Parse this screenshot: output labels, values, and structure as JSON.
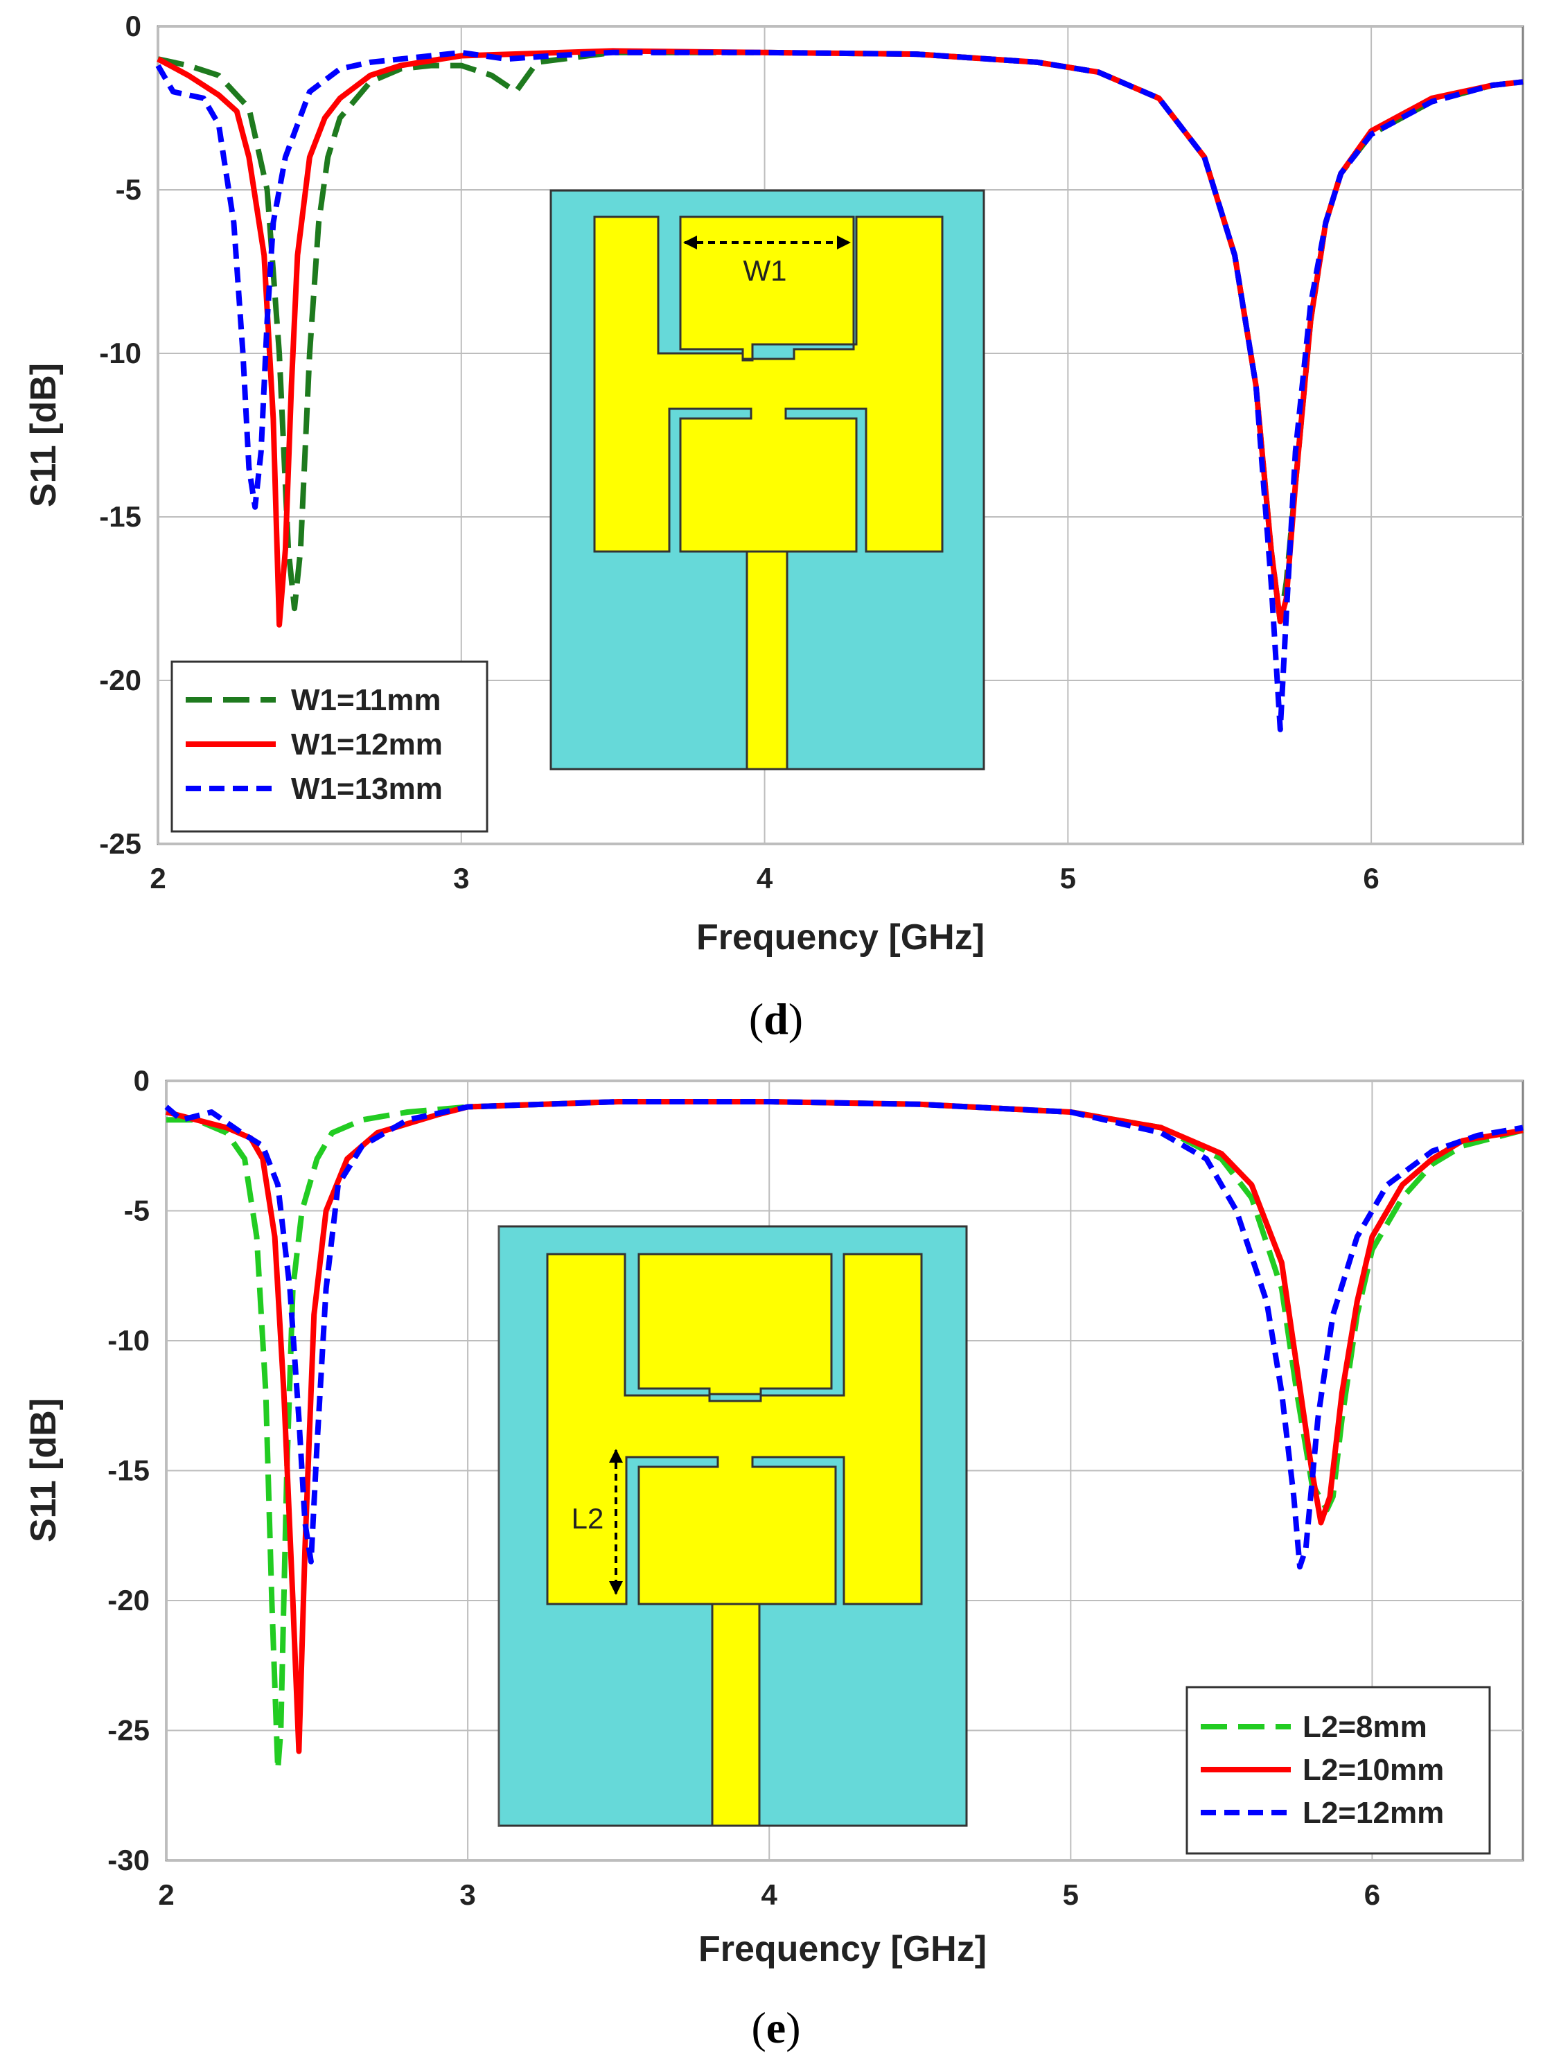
{
  "chart_data": [
    {
      "type": "line",
      "caption_letter": "d",
      "xlabel": "Frequency [GHz]",
      "ylabel": "S11 [dB]",
      "xlim": [
        2,
        6.5
      ],
      "ylim": [
        -25,
        0
      ],
      "xticks": [
        2,
        3,
        4,
        5,
        6
      ],
      "yticks": [
        0,
        -5,
        -10,
        -15,
        -20,
        -25
      ],
      "grid": true,
      "legend_position": "bottom-left",
      "inset_label": "W1",
      "inset_dimension": "width",
      "series": [
        {
          "name": "W1=11mm",
          "color": "#1e7a1e",
          "dash": "long-dash",
          "x": [
            2.0,
            2.1,
            2.2,
            2.3,
            2.36,
            2.4,
            2.43,
            2.45,
            2.47,
            2.5,
            2.53,
            2.56,
            2.6,
            2.7,
            2.8,
            2.9,
            3.0,
            3.1,
            3.18,
            3.25,
            3.5,
            4.0,
            4.5,
            4.9,
            5.1,
            5.3,
            5.45,
            5.55,
            5.62,
            5.67,
            5.7,
            5.72,
            5.75,
            5.8,
            5.85,
            5.9,
            6.0,
            6.2,
            6.4,
            6.5
          ],
          "y": [
            -1.0,
            -1.2,
            -1.5,
            -2.5,
            -5.0,
            -10.0,
            -16.0,
            -17.8,
            -16.0,
            -10.0,
            -6.0,
            -4.0,
            -2.8,
            -1.7,
            -1.3,
            -1.2,
            -1.2,
            -1.5,
            -2.0,
            -1.1,
            -0.8,
            -0.8,
            -0.85,
            -1.1,
            -1.4,
            -2.2,
            -4.0,
            -7.0,
            -11.0,
            -16.0,
            -18.2,
            -17.0,
            -14.0,
            -9.0,
            -6.0,
            -4.5,
            -3.3,
            -2.3,
            -1.8,
            -1.7
          ]
        },
        {
          "name": "W1=12mm",
          "color": "#ff0000",
          "dash": "solid",
          "x": [
            2.0,
            2.1,
            2.2,
            2.26,
            2.3,
            2.35,
            2.38,
            2.4,
            2.42,
            2.44,
            2.46,
            2.5,
            2.55,
            2.6,
            2.7,
            2.8,
            3.0,
            3.5,
            4.0,
            4.5,
            4.9,
            5.1,
            5.3,
            5.45,
            5.55,
            5.62,
            5.67,
            5.7,
            5.72,
            5.75,
            5.8,
            5.85,
            5.9,
            6.0,
            6.2,
            6.4,
            6.5
          ],
          "y": [
            -1.0,
            -1.5,
            -2.1,
            -2.6,
            -4.0,
            -7.0,
            -12.0,
            -18.3,
            -16.0,
            -11.0,
            -7.0,
            -4.0,
            -2.8,
            -2.2,
            -1.5,
            -1.2,
            -0.9,
            -0.75,
            -0.8,
            -0.85,
            -1.1,
            -1.4,
            -2.2,
            -4.0,
            -7.0,
            -11.0,
            -16.0,
            -18.2,
            -17.5,
            -14.0,
            -9.0,
            -6.0,
            -4.5,
            -3.2,
            -2.2,
            -1.8,
            -1.7
          ]
        },
        {
          "name": "W1=13mm",
          "color": "#0000ff",
          "dash": "short-dash",
          "x": [
            2.0,
            2.05,
            2.15,
            2.2,
            2.25,
            2.28,
            2.3,
            2.32,
            2.34,
            2.36,
            2.38,
            2.42,
            2.46,
            2.5,
            2.6,
            2.7,
            2.9,
            3.0,
            3.15,
            3.3,
            3.5,
            4.0,
            4.5,
            4.9,
            5.1,
            5.3,
            5.45,
            5.55,
            5.62,
            5.67,
            5.7,
            5.72,
            5.75,
            5.8,
            5.85,
            5.9,
            6.0,
            6.2,
            6.4,
            6.5
          ],
          "y": [
            -1.2,
            -2.0,
            -2.2,
            -3.0,
            -6.0,
            -10.0,
            -13.5,
            -14.7,
            -13.0,
            -9.0,
            -6.0,
            -4.0,
            -3.0,
            -2.0,
            -1.3,
            -1.1,
            -0.9,
            -0.8,
            -1.0,
            -0.9,
            -0.8,
            -0.8,
            -0.85,
            -1.1,
            -1.4,
            -2.2,
            -4.0,
            -7.0,
            -11.0,
            -17.0,
            -21.5,
            -18.0,
            -13.0,
            -8.5,
            -6.0,
            -4.5,
            -3.3,
            -2.3,
            -1.8,
            -1.7
          ]
        }
      ]
    },
    {
      "type": "line",
      "caption_letter": "e",
      "xlabel": "Frequency [GHz]",
      "ylabel": "S11 [dB]",
      "xlim": [
        2,
        6.5
      ],
      "ylim": [
        -30,
        0
      ],
      "xticks": [
        2,
        3,
        4,
        5,
        6
      ],
      "yticks": [
        0,
        -5,
        -10,
        -15,
        -20,
        -25,
        -30
      ],
      "grid": true,
      "legend_position": "bottom-right",
      "inset_label": "L2",
      "inset_dimension": "length",
      "series": [
        {
          "name": "L2=8mm",
          "color": "#22cc22",
          "dash": "long-dash",
          "x": [
            2.0,
            2.1,
            2.2,
            2.26,
            2.3,
            2.33,
            2.35,
            2.37,
            2.38,
            2.4,
            2.42,
            2.45,
            2.5,
            2.55,
            2.65,
            2.8,
            3.0,
            3.5,
            4.0,
            4.5,
            5.0,
            5.3,
            5.5,
            5.6,
            5.7,
            5.75,
            5.8,
            5.85,
            5.87,
            5.9,
            5.95,
            6.0,
            6.1,
            6.2,
            6.3,
            6.5
          ],
          "y": [
            -1.5,
            -1.5,
            -2.0,
            -3.0,
            -6.0,
            -12.0,
            -20.0,
            -26.5,
            -25.0,
            -15.0,
            -8.0,
            -5.0,
            -3.0,
            -2.0,
            -1.5,
            -1.2,
            -1.0,
            -0.8,
            -0.8,
            -0.9,
            -1.2,
            -1.8,
            -3.0,
            -4.5,
            -8.0,
            -12.0,
            -15.5,
            -16.5,
            -16.0,
            -13.0,
            -9.0,
            -6.5,
            -4.5,
            -3.2,
            -2.5,
            -1.9
          ]
        },
        {
          "name": "L2=10mm",
          "color": "#ff0000",
          "dash": "solid",
          "x": [
            2.0,
            2.1,
            2.2,
            2.28,
            2.32,
            2.36,
            2.39,
            2.42,
            2.44,
            2.46,
            2.49,
            2.53,
            2.6,
            2.7,
            2.9,
            3.0,
            3.5,
            4.0,
            4.5,
            5.0,
            5.3,
            5.5,
            5.6,
            5.7,
            5.75,
            5.8,
            5.83,
            5.86,
            5.9,
            5.95,
            6.0,
            6.1,
            6.2,
            6.3,
            6.5
          ],
          "y": [
            -1.2,
            -1.5,
            -1.8,
            -2.2,
            -3.0,
            -6.0,
            -12.0,
            -20.0,
            -25.8,
            -18.0,
            -9.0,
            -5.0,
            -3.0,
            -2.0,
            -1.3,
            -1.0,
            -0.8,
            -0.8,
            -0.9,
            -1.2,
            -1.8,
            -2.8,
            -4.0,
            -7.0,
            -11.0,
            -15.0,
            -17.0,
            -16.0,
            -12.0,
            -8.5,
            -6.0,
            -4.0,
            -3.0,
            -2.3,
            -1.9
          ]
        },
        {
          "name": "L2=12mm",
          "color": "#0000ff",
          "dash": "short-dash",
          "x": [
            2.0,
            2.05,
            2.15,
            2.25,
            2.32,
            2.37,
            2.41,
            2.44,
            2.46,
            2.48,
            2.5,
            2.53,
            2.57,
            2.65,
            2.8,
            3.0,
            3.5,
            4.0,
            4.5,
            5.0,
            5.3,
            5.45,
            5.55,
            5.65,
            5.7,
            5.74,
            5.76,
            5.78,
            5.82,
            5.87,
            5.95,
            6.05,
            6.2,
            6.35,
            6.5
          ],
          "y": [
            -1.0,
            -1.5,
            -1.2,
            -2.0,
            -2.5,
            -4.0,
            -8.0,
            -13.0,
            -17.0,
            -18.5,
            -14.0,
            -8.0,
            -4.0,
            -2.5,
            -1.5,
            -1.0,
            -0.8,
            -0.8,
            -0.9,
            -1.2,
            -2.0,
            -3.0,
            -5.0,
            -8.5,
            -12.0,
            -16.0,
            -18.7,
            -18.0,
            -13.0,
            -9.0,
            -6.0,
            -4.0,
            -2.7,
            -2.1,
            -1.8
          ]
        }
      ]
    }
  ]
}
